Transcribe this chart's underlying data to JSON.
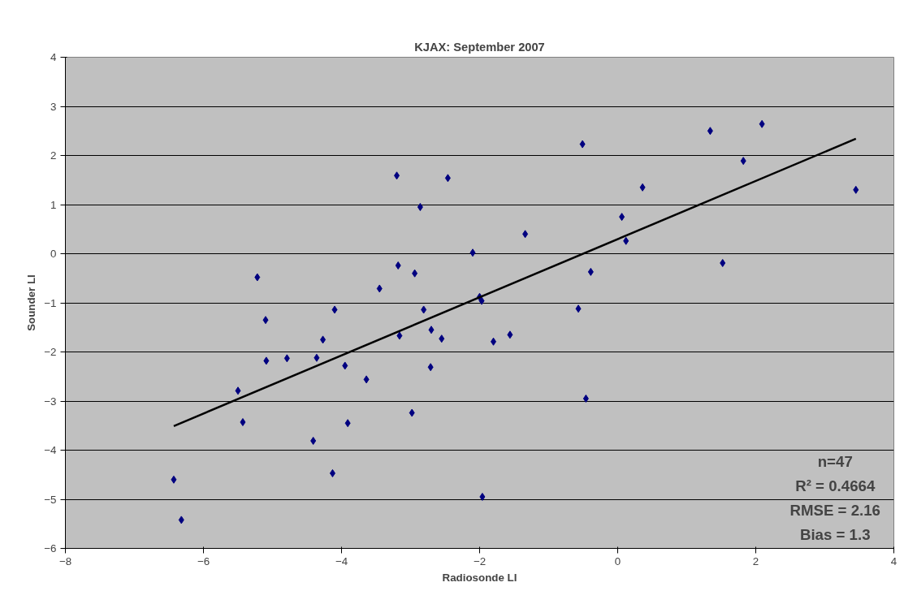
{
  "chart_data": {
    "type": "scatter",
    "title": "KJAX: September 2007",
    "xlabel": "Radiosonde LI",
    "ylabel": "Sounder LI",
    "xlim": [
      -8,
      4
    ],
    "xticks": [
      -8,
      -6,
      -4,
      -2,
      0,
      2,
      4
    ],
    "ylim": [
      -6,
      4
    ],
    "yticks": [
      -6,
      -5,
      -4,
      -3,
      -2,
      -1,
      0,
      1,
      2,
      3,
      4
    ],
    "grid": "y",
    "series": [
      {
        "marker": "diamond",
        "color": "#000080",
        "x": [
          -6.43,
          -6.32,
          -5.5,
          -5.43,
          -5.22,
          -5.1,
          -5.09,
          -4.79,
          -4.41,
          -4.36,
          -4.27,
          -4.13,
          -4.1,
          -3.95,
          -3.91,
          -3.64,
          -3.45,
          -3.2,
          -3.18,
          -3.16,
          -2.98,
          -2.94,
          -2.86,
          -2.81,
          -2.7,
          -2.71,
          -2.55,
          -2.46,
          -2.1,
          -2.0,
          -1.97,
          -1.96,
          -1.8,
          -1.56,
          -1.34,
          -0.57,
          -0.51,
          -0.46,
          -0.39,
          0.06,
          0.12,
          0.36,
          1.34,
          1.52,
          1.82,
          2.09,
          3.45
        ],
        "values": [
          -4.6,
          -5.42,
          -2.79,
          -3.43,
          -0.48,
          -1.35,
          -2.18,
          -2.13,
          -3.81,
          -2.12,
          -1.75,
          -4.47,
          -1.14,
          -2.28,
          -3.45,
          -2.56,
          -0.71,
          1.59,
          -0.24,
          -1.67,
          -3.24,
          -0.4,
          0.95,
          -1.14,
          -1.55,
          -2.31,
          -1.73,
          1.54,
          0.02,
          -0.88,
          -0.96,
          -4.95,
          -1.79,
          -1.65,
          0.4,
          -1.12,
          2.23,
          -2.95,
          -0.37,
          0.75,
          0.26,
          1.35,
          2.5,
          -0.19,
          1.89,
          2.64,
          1.3
        ]
      },
      {
        "type": "line",
        "color": "#000000",
        "x": [
          -6.43,
          3.45
        ],
        "values": [
          -3.51,
          2.34
        ]
      }
    ],
    "annotations": [
      "n=47",
      "R² = 0.4664",
      "RMSE = 2.16",
      "Bias = 1.3"
    ]
  }
}
